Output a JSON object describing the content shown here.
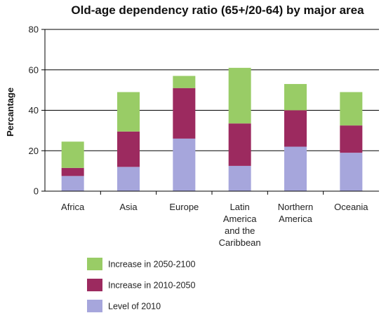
{
  "chart_data": {
    "type": "bar",
    "stacked": true,
    "title": "Old-age dependency ratio (65+/20-64) by major area",
    "xlabel": "",
    "ylabel": "Percantage",
    "ylim": [
      0,
      80
    ],
    "yticks": [
      0,
      20,
      40,
      60,
      80
    ],
    "grid": true,
    "legend_position": "bottom-left",
    "categories": [
      "Africa",
      "Asia",
      "Europe",
      "Latin America and the Caribbean",
      "Northern America",
      "Oceania"
    ],
    "category_lines": [
      [
        "Africa"
      ],
      [
        "Asia"
      ],
      [
        "Europe"
      ],
      [
        "Latin",
        "America",
        "and the",
        "Caribbean"
      ],
      [
        "Northern",
        "America"
      ],
      [
        "Oceania"
      ]
    ],
    "series": [
      {
        "name": "Level of 2010",
        "color": "#a6a6dc",
        "values": [
          7.5,
          12,
          26,
          12.5,
          22,
          19
        ]
      },
      {
        "name": "Increase in 2010-2050",
        "color": "#9c2a5f",
        "values": [
          4,
          17.5,
          25,
          21,
          18,
          13.5
        ]
      },
      {
        "name": "Increase in 2050-2100",
        "color": "#99cc66",
        "values": [
          13,
          19.5,
          6,
          27.5,
          13,
          16.5
        ]
      }
    ],
    "legend_order": [
      "Increase in 2050-2100",
      "Increase in 2010-2050",
      "Level of 2010"
    ]
  }
}
